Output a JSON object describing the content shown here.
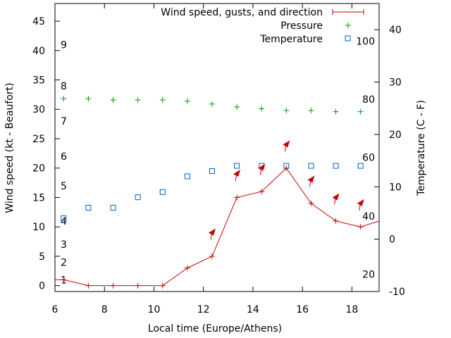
{
  "chart_data": {
    "type": "line",
    "xlabel": "Local time (Europe/Athens)",
    "ylabel": "Wind speed (kt - Beaufort)",
    "y2label": "Temperature (C - F)",
    "xlim": [
      6,
      19.1
    ],
    "ylim": [
      -1,
      48
    ],
    "y2lim": [
      -10,
      45
    ],
    "x_ticks": [
      "6",
      "8",
      "10",
      "12",
      "14",
      "16",
      "18"
    ],
    "y_ticks": [
      "0",
      "5",
      "10",
      "15",
      "20",
      "25",
      "30",
      "35",
      "40",
      "45"
    ],
    "y2_ticks": [
      "-10",
      "0",
      "10",
      "20",
      "30",
      "40"
    ],
    "beaufort_labels": [
      {
        "text": "1",
        "kt": 1
      },
      {
        "text": "2",
        "kt": 4
      },
      {
        "text": "3",
        "kt": 7
      },
      {
        "text": "4",
        "kt": 11
      },
      {
        "text": "5",
        "kt": 17
      },
      {
        "text": "6",
        "kt": 22
      },
      {
        "text": "7",
        "kt": 28
      },
      {
        "text": "8",
        "kt": 34
      },
      {
        "text": "9",
        "kt": 41
      }
    ],
    "fahrenheit_labels": [
      {
        "text": "20",
        "c": -6.7
      },
      {
        "text": "40",
        "c": 4.4
      },
      {
        "text": "60",
        "c": 15.6
      },
      {
        "text": "80",
        "c": 26.7
      },
      {
        "text": "100",
        "c": 37.8
      }
    ],
    "legend": [
      "Wind speed, gusts, and direction",
      "Pressure",
      "Temperature"
    ],
    "legend_position": "top-right",
    "colors": {
      "wind": "#cc0000",
      "pressure": "#00a000",
      "temperature": "#0060c0",
      "gust_arrow": "#cc0000"
    },
    "series": [
      {
        "name": "Wind speed, gusts, and direction",
        "x": [
          6,
          6.35,
          7.35,
          8.35,
          9.35,
          10.35,
          11.35,
          12.35,
          13.35,
          14.35,
          15.35,
          16.35,
          17.35,
          18.35,
          19.1
        ],
        "values": [
          1,
          1,
          0,
          0,
          0,
          0,
          3,
          5,
          15,
          16,
          20,
          14,
          11,
          10,
          11
        ]
      },
      {
        "name": "Pressure",
        "x": [
          6.35,
          7.35,
          8.35,
          9.35,
          10.35,
          11.35,
          12.35,
          13.35,
          14.35,
          15.35,
          16.35,
          17.35,
          18.35
        ],
        "values": [
          31.8,
          31.8,
          31.6,
          31.6,
          31.6,
          31.4,
          30.9,
          30.4,
          30.1,
          29.8,
          29.8,
          29.6,
          29.6
        ]
      },
      {
        "name": "Temperature",
        "x": [
          6.35,
          7.35,
          8.35,
          9.35,
          10.35,
          11.35,
          12.35,
          13.35,
          14.35,
          15.35,
          16.35,
          17.35,
          18.35
        ],
        "values": [
          4,
          6,
          6,
          8,
          9,
          12,
          13,
          14,
          14,
          14,
          14,
          14,
          14
        ]
      }
    ],
    "gusts": {
      "x": [
        12.35,
        13.35,
        14.35,
        15.35,
        16.35,
        17.35,
        18.35
      ],
      "values": [
        9,
        19,
        20,
        24,
        18,
        15,
        14
      ]
    }
  }
}
